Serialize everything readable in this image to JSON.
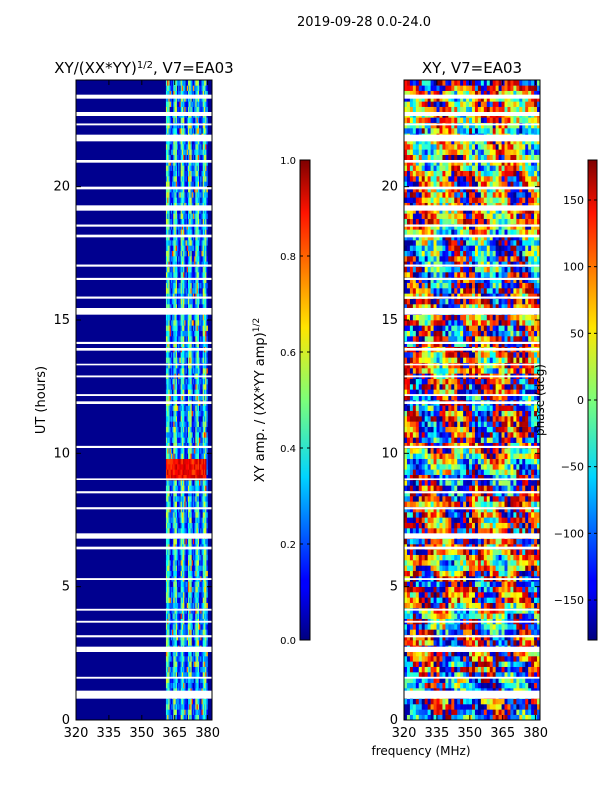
{
  "page": {
    "suptitle": "2019-09-28 0.0-24.0"
  },
  "chart_data": [
    {
      "type": "heatmap",
      "title": "XY/(XX*YY)$^{1/2}$, V7=EA03",
      "title_main": "XY/(XX*YY)",
      "title_sup": "1/2",
      "title_tail": ", V7=EA03",
      "xlabel": "",
      "ylabel": "UT (hours)",
      "xlim": [
        320,
        382
      ],
      "ylim": [
        0,
        24
      ],
      "xticks": [
        320,
        335,
        350,
        365,
        380
      ],
      "yticks": [
        0,
        5,
        10,
        15,
        20
      ],
      "active_band_mhz": [
        361,
        380
      ],
      "hot_region": {
        "x_range_mhz": [
          361,
          379
        ],
        "y_range_h": [
          9.0,
          9.8
        ],
        "value": 0.95
      },
      "colorbar": {
        "label": "XY amp. / (XX*YY amp)$^{1/2}$",
        "label_main": "XY amp. / (XX*YY amp)",
        "label_sup": "1/2",
        "range": [
          0.0,
          1.0
        ],
        "ticks": [
          "0.0",
          "0.2",
          "0.4",
          "0.6",
          "0.8",
          "1.0"
        ],
        "tick_values": [
          0.0,
          0.2,
          0.4,
          0.6,
          0.8,
          1.0
        ],
        "colormap": "jet"
      }
    },
    {
      "type": "heatmap",
      "title": "XY, V7=EA03",
      "xlabel": "frequency (MHz)",
      "ylabel": "",
      "xlim": [
        320,
        382
      ],
      "ylim": [
        0,
        24
      ],
      "xticks": [
        320,
        335,
        350,
        365,
        380
      ],
      "yticks": [
        0,
        5,
        10,
        15,
        20
      ],
      "colorbar": {
        "label": "phase (deg)",
        "range": [
          -180,
          180
        ],
        "ticks": [
          "150",
          "100",
          "50",
          "0",
          "−50",
          "−100",
          "−150"
        ],
        "tick_values": [
          150,
          100,
          50,
          0,
          -50,
          -100,
          -150
        ],
        "colormap": "jet"
      }
    }
  ],
  "flagged_gaps_hours": [
    [
      0.8,
      1.1
    ],
    [
      1.55,
      1.62
    ],
    [
      2.55,
      2.75
    ],
    [
      3.1,
      3.18
    ],
    [
      3.65,
      3.72
    ],
    [
      4.1,
      4.17
    ],
    [
      5.25,
      5.32
    ],
    [
      6.4,
      6.5
    ],
    [
      6.8,
      7.0
    ],
    [
      7.9,
      7.98
    ],
    [
      8.5,
      8.58
    ],
    [
      9.0,
      9.06
    ],
    [
      10.2,
      10.28
    ],
    [
      11.85,
      11.95
    ],
    [
      12.15,
      12.22
    ],
    [
      12.85,
      12.92
    ],
    [
      13.3,
      13.36
    ],
    [
      13.85,
      13.95
    ],
    [
      14.1,
      14.18
    ],
    [
      15.2,
      15.45
    ],
    [
      15.8,
      15.88
    ],
    [
      16.5,
      16.58
    ],
    [
      17.0,
      17.08
    ],
    [
      18.1,
      18.2
    ],
    [
      18.5,
      18.58
    ],
    [
      19.1,
      19.3
    ],
    [
      19.9,
      20.0
    ],
    [
      20.9,
      21.0
    ],
    [
      21.7,
      21.95
    ],
    [
      22.3,
      22.37
    ],
    [
      22.65,
      22.8
    ],
    [
      23.3,
      23.45
    ]
  ]
}
